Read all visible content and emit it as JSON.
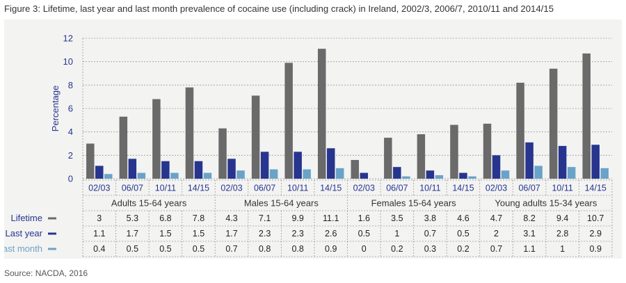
{
  "figure_title": "Figure 3: Lifetime, last year and last month prevalence of cocaine use (including crack) in Ireland, 2002/3, 2006/7, 2010/11 and 2014/15",
  "source": "Source: NACDA, 2016",
  "colors": {
    "panel_bg": "#f3f3f2",
    "lifetime": "#6a6a6a",
    "last_year": "#27358f",
    "last_month": "#6aa3c8",
    "axis_text": "#27358f",
    "grid": "#9a9a9a"
  },
  "chart_data": {
    "type": "bar",
    "ylabel": "Percentage",
    "ylim": [
      0,
      12
    ],
    "yticks": [
      0,
      2,
      4,
      6,
      8,
      10,
      12
    ],
    "grid": true,
    "legend_placement": "table-rows-left",
    "groups": [
      "Adults 15-64 years",
      "Males 15-64 years",
      "Females 15-64 years",
      "Young adults 15-34 years"
    ],
    "categories": [
      "02/03",
      "06/07",
      "10/11",
      "14/15",
      "02/03",
      "06/07",
      "10/11",
      "14/15",
      "02/03",
      "06/07",
      "10/11",
      "14/15",
      "02/03",
      "06/07",
      "10/11",
      "14/15"
    ],
    "series": [
      {
        "name": "Lifetime",
        "color": "#6a6a6a",
        "values": [
          3,
          5.3,
          6.8,
          7.8,
          4.3,
          7.1,
          9.9,
          11.1,
          1.6,
          3.5,
          3.8,
          4.6,
          4.7,
          8.2,
          9.4,
          10.7
        ]
      },
      {
        "name": "Last year",
        "color": "#27358f",
        "values": [
          1.1,
          1.7,
          1.5,
          1.5,
          1.7,
          2.3,
          2.3,
          2.6,
          0.5,
          1,
          0.7,
          0.5,
          2,
          3.1,
          2.8,
          2.9
        ]
      },
      {
        "name": "Last month",
        "color": "#6aa3c8",
        "values": [
          0.4,
          0.5,
          0.5,
          0.5,
          0.7,
          0.8,
          0.8,
          0.9,
          0,
          0.2,
          0.3,
          0.2,
          0.7,
          1.1,
          1,
          0.9
        ]
      }
    ]
  }
}
